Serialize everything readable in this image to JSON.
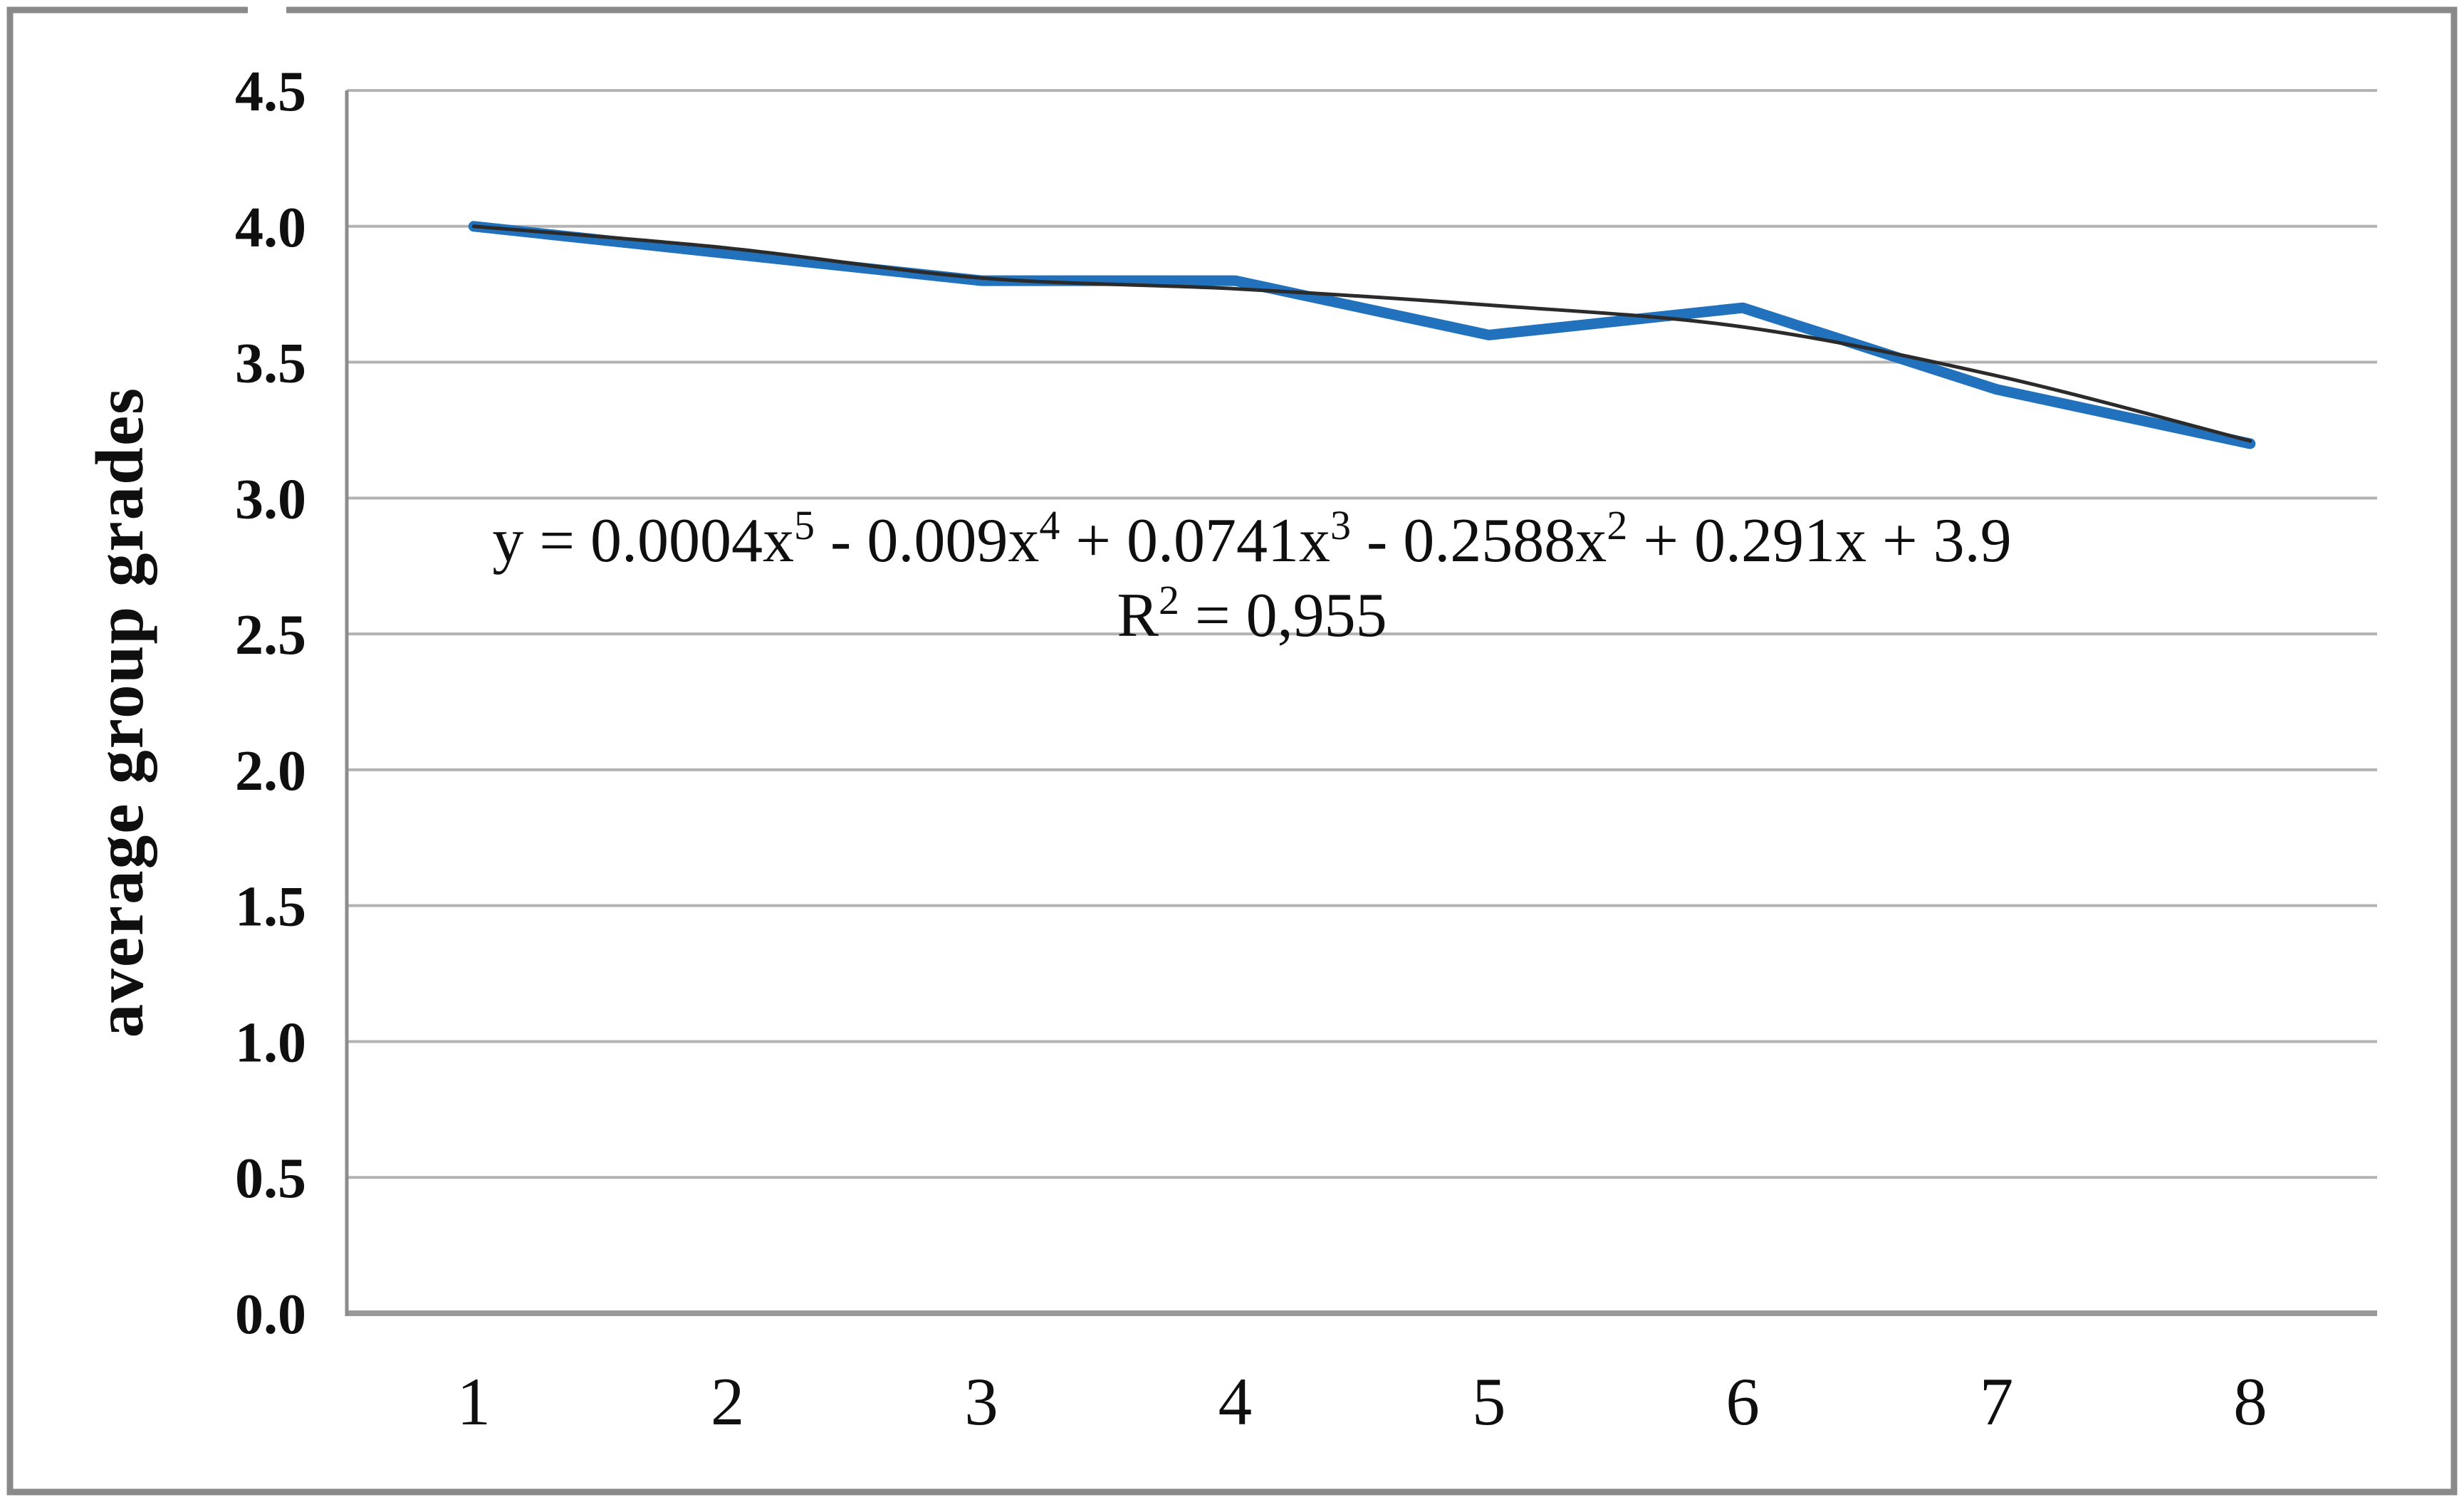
{
  "page": {
    "background": "#ffffff",
    "frame_border_color": "#8a8a8a"
  },
  "chart_data": {
    "type": "line",
    "title": "",
    "xlabel": "",
    "ylabel": "average group grades",
    "x_categories": [
      "1",
      "2",
      "3",
      "4",
      "5",
      "6",
      "7",
      "8"
    ],
    "ylim": [
      0.0,
      4.5
    ],
    "ytick_step": 0.5,
    "yticks": [
      "4.5",
      "4.0",
      "3.5",
      "3.0",
      "2.5",
      "2.0",
      "1.5",
      "1.0",
      "0.5",
      "0.0"
    ],
    "grid": "horizontal",
    "legend_position": "none",
    "series": [
      {
        "name": "average group grades",
        "role": "data",
        "color": "#2271bd",
        "stroke_width": 15,
        "smooth": false,
        "values": [
          4.0,
          3.9,
          3.8,
          3.8,
          3.6,
          3.7,
          3.4,
          3.2
        ]
      },
      {
        "name": "polynomial trendline (degree 5)",
        "role": "trendline",
        "color": "#2b2b2b",
        "stroke_width": 5,
        "smooth": true,
        "values": [
          4.0,
          3.92,
          3.81,
          3.77,
          3.71,
          3.63,
          3.45,
          3.21
        ]
      }
    ],
    "annotations": {
      "equation_line1_text": "y = 0.0004x5 - 0.009x4 + 0.0741x3 - 0.2588x2 + 0.291x + 3.9",
      "equation_line2_text": "R2 = 0,955",
      "equation_line1_segments": [
        {
          "t": "y = 0.0004x"
        },
        {
          "sup": "5"
        },
        {
          "t": " - 0.009x"
        },
        {
          "sup": "4"
        },
        {
          "t": " + 0.0741x"
        },
        {
          "sup": "3"
        },
        {
          "t": " - 0.2588x"
        },
        {
          "sup": "2"
        },
        {
          "t": " + 0.291x + 3.9"
        }
      ],
      "equation_line2_segments": [
        {
          "t": "R"
        },
        {
          "sup": "2"
        },
        {
          "t": " = 0,955"
        }
      ]
    },
    "axis_colors": {
      "gridline": "#b3b3b3",
      "zero_line": "#9a9a9a",
      "y_axis_line": "#8c8c8c",
      "text": "#0f0f0f"
    }
  }
}
